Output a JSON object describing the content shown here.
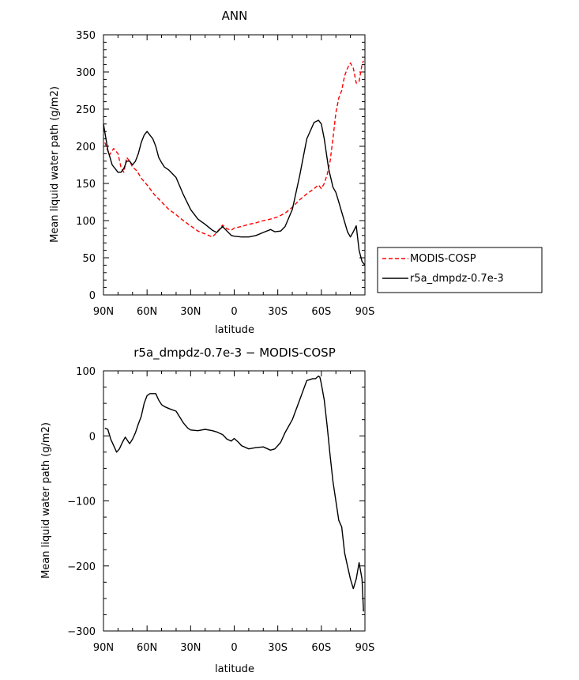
{
  "chart_data": [
    {
      "type": "line",
      "title": "ANN",
      "xlabel": "latitude",
      "ylabel": "Mean liquid water path (g/m2)",
      "xlim": [
        -90,
        90
      ],
      "ylim": [
        0,
        350
      ],
      "x_ticks": [
        {
          "value": -90,
          "label": "90N"
        },
        {
          "value": -60,
          "label": "60N"
        },
        {
          "value": -30,
          "label": "30N"
        },
        {
          "value": 0,
          "label": "0"
        },
        {
          "value": 30,
          "label": "30S"
        },
        {
          "value": 60,
          "label": "60S"
        },
        {
          "value": 90,
          "label": "90S"
        }
      ],
      "y_ticks": [
        0,
        50,
        100,
        150,
        200,
        250,
        300,
        350
      ],
      "legend_position": "outside-right",
      "series": [
        {
          "name": "MODIS-COSP",
          "color": "#ff0000",
          "dash": "dashed",
          "x": [
            -89,
            -86,
            -83,
            -80,
            -78,
            -76,
            -74,
            -72,
            -70,
            -67,
            -64,
            -60,
            -55,
            -50,
            -45,
            -40,
            -35,
            -30,
            -25,
            -20,
            -15,
            -12,
            -8,
            -5,
            -2,
            0,
            5,
            10,
            15,
            20,
            25,
            30,
            35,
            40,
            45,
            50,
            55,
            58,
            60,
            62,
            64,
            66,
            68,
            70,
            72,
            74,
            76,
            78,
            80,
            82,
            84,
            86,
            88,
            89
          ],
          "y": [
            205,
            188,
            197,
            190,
            172,
            165,
            185,
            180,
            172,
            167,
            157,
            148,
            135,
            125,
            115,
            108,
            100,
            93,
            86,
            82,
            78,
            84,
            94,
            89,
            87,
            90,
            92,
            95,
            97,
            100,
            102,
            105,
            110,
            118,
            128,
            136,
            143,
            148,
            143,
            150,
            162,
            180,
            210,
            245,
            265,
            275,
            295,
            305,
            312,
            305,
            285,
            287,
            310,
            315
          ]
        },
        {
          "name": "r5a_dmpdz-0.7e-3",
          "color": "#000000",
          "dash": "solid",
          "x": [
            -90,
            -87,
            -84,
            -82,
            -80,
            -78,
            -76,
            -74,
            -72,
            -70,
            -68,
            -66,
            -64,
            -62,
            -60,
            -58,
            -56,
            -54,
            -52,
            -50,
            -48,
            -45,
            -40,
            -35,
            -30,
            -25,
            -20,
            -15,
            -12,
            -10,
            -8,
            -5,
            -2,
            0,
            5,
            10,
            15,
            20,
            25,
            28,
            32,
            35,
            40,
            45,
            50,
            55,
            58,
            60,
            62,
            65,
            68,
            70,
            72,
            75,
            78,
            80,
            82,
            84,
            86,
            88,
            90
          ],
          "y": [
            230,
            195,
            175,
            170,
            165,
            165,
            170,
            180,
            180,
            175,
            180,
            190,
            205,
            215,
            220,
            215,
            210,
            200,
            185,
            178,
            172,
            168,
            158,
            135,
            115,
            102,
            95,
            87,
            84,
            88,
            92,
            86,
            80,
            79,
            78,
            78,
            80,
            84,
            88,
            85,
            86,
            92,
            115,
            160,
            210,
            232,
            235,
            230,
            210,
            170,
            145,
            138,
            125,
            105,
            85,
            78,
            85,
            93,
            60,
            45,
            40
          ]
        }
      ]
    },
    {
      "type": "line",
      "title": "r5a_dmpdz-0.7e-3 − MODIS-COSP",
      "xlabel": "latitude",
      "ylabel": "Mean liquid water path (g/m2)",
      "xlim": [
        -90,
        90
      ],
      "ylim": [
        -300,
        100
      ],
      "x_ticks": [
        {
          "value": -90,
          "label": "90N"
        },
        {
          "value": -60,
          "label": "60N"
        },
        {
          "value": -30,
          "label": "30N"
        },
        {
          "value": 0,
          "label": "0"
        },
        {
          "value": 30,
          "label": "30S"
        },
        {
          "value": 60,
          "label": "60S"
        },
        {
          "value": 90,
          "label": "90S"
        }
      ],
      "y_ticks": [
        -300,
        -200,
        -100,
        0,
        100
      ],
      "series": [
        {
          "color": "#000000",
          "dash": "solid",
          "x": [
            -89,
            -87,
            -85,
            -83,
            -81,
            -79,
            -77,
            -75,
            -72,
            -70,
            -68,
            -66,
            -64,
            -62,
            -60,
            -58,
            -56,
            -54,
            -52,
            -50,
            -48,
            -45,
            -40,
            -35,
            -32,
            -30,
            -25,
            -20,
            -15,
            -12,
            -10,
            -8,
            -5,
            -2,
            0,
            3,
            5,
            10,
            15,
            20,
            25,
            28,
            32,
            35,
            40,
            45,
            50,
            54,
            56,
            58,
            59,
            60,
            62,
            64,
            66,
            68,
            70,
            72,
            74,
            76,
            78,
            80,
            82,
            84,
            86,
            88,
            89
          ],
          "y": [
            12,
            10,
            -5,
            -15,
            -25,
            -20,
            -10,
            -2,
            -12,
            -5,
            5,
            18,
            30,
            50,
            62,
            65,
            65,
            65,
            55,
            48,
            45,
            42,
            38,
            20,
            12,
            9,
            8,
            10,
            8,
            6,
            4,
            2,
            -5,
            -8,
            -4,
            -10,
            -15,
            -20,
            -18,
            -17,
            -22,
            -20,
            -10,
            5,
            25,
            55,
            85,
            88,
            88,
            92,
            90,
            80,
            55,
            15,
            -30,
            -70,
            -100,
            -130,
            -140,
            -180,
            -200,
            -220,
            -235,
            -220,
            -195,
            -220,
            -270
          ]
        }
      ]
    }
  ],
  "legend": {
    "items": [
      {
        "label": "MODIS-COSP",
        "color": "#ff0000",
        "dash": "dashed"
      },
      {
        "label": "r5a_dmpdz-0.7e-3",
        "color": "#000000",
        "dash": "solid"
      }
    ]
  }
}
